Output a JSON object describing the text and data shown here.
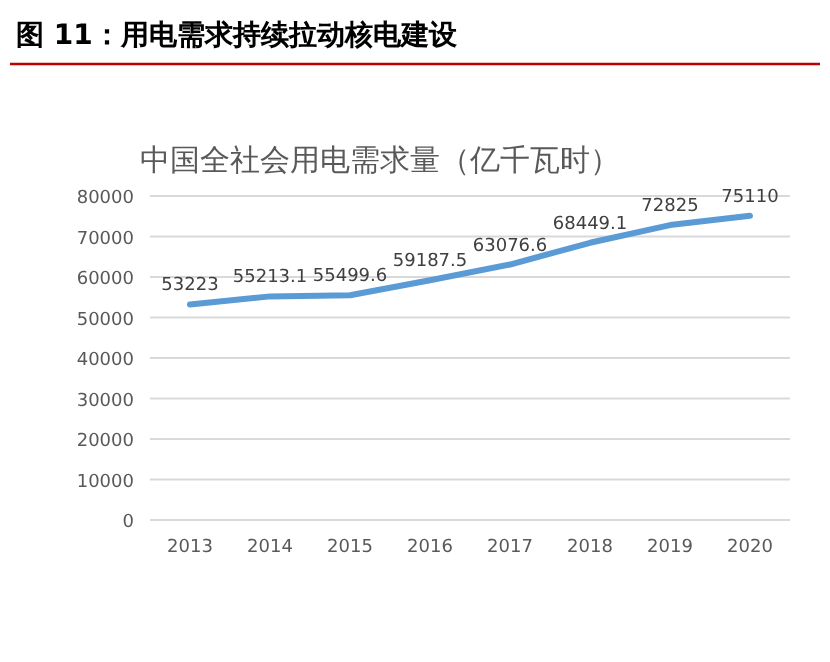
{
  "chart_data": {
    "type": "line",
    "title": "图 11：用电需求持续拉动核电建设",
    "subtitle": "中国全社会用电需求量（亿千瓦时）",
    "categories": [
      "2013",
      "2014",
      "2015",
      "2016",
      "2017",
      "2018",
      "2019",
      "2020"
    ],
    "series": [
      {
        "color": "#5b9bd5",
        "values": [
          53223,
          55213.1,
          55499.6,
          59187.5,
          63076.6,
          68449.1,
          72825,
          75110
        ]
      }
    ],
    "ylim": [
      0,
      80000
    ],
    "yticks": [
      0,
      10000,
      20000,
      30000,
      40000,
      50000,
      60000,
      70000,
      80000
    ],
    "grid": "y",
    "data_labels": true
  }
}
